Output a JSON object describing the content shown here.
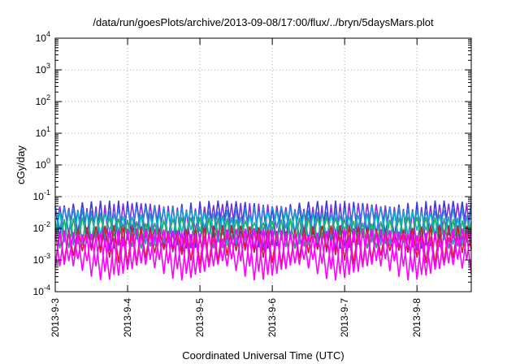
{
  "chart_data": {
    "type": "line",
    "title": "/data/run/goesPlots/archive/2013-09-08/17:00/flux/../bryn/5daysMars.plot",
    "xlabel": "Coordinated Universal Time (UTC)",
    "ylabel": "cGy/day",
    "y_scale": "log",
    "ylim": [
      0.0001,
      10000
    ],
    "xlim": [
      "2013-09-03 00:00",
      "2013-09-08 18:00"
    ],
    "x_ticks": [
      "2013-9-3",
      "2013-9-4",
      "2013-9-5",
      "2013-9-6",
      "2013-9-7",
      "2013-9-8"
    ],
    "y_ticks": [
      {
        "base": "10",
        "exp": "-4"
      },
      {
        "base": "10",
        "exp": "-3"
      },
      {
        "base": "10",
        "exp": "-2"
      },
      {
        "base": "10",
        "exp": "-1"
      },
      {
        "base": "10",
        "exp": "0"
      },
      {
        "base": "10",
        "exp": "1"
      },
      {
        "base": "10",
        "exp": "2"
      },
      {
        "base": "10",
        "exp": "3"
      },
      {
        "base": "10",
        "exp": "4"
      }
    ],
    "grid": true,
    "legend": "none",
    "oscillation_period_hours": 3,
    "series": [
      {
        "color": "#3a3ad8",
        "peak": 0.06,
        "trough": 0.004
      },
      {
        "color": "#8a2be2",
        "peak": 0.05,
        "trough": 0.003
      },
      {
        "color": "#2a8ae0",
        "peak": 0.04,
        "trough": 0.006
      },
      {
        "color": "#00b8b8",
        "peak": 0.028,
        "trough": 0.005
      },
      {
        "color": "#22b060",
        "peak": 0.018,
        "trough": 0.004
      },
      {
        "color": "#d01f2f",
        "peak": 0.01,
        "trough": 0.0012
      },
      {
        "color": "#ff00ff",
        "peak": 0.008,
        "trough": 0.0006
      },
      {
        "color": "#ff00ff",
        "peak": 0.006,
        "trough": 0.0004
      }
    ]
  }
}
